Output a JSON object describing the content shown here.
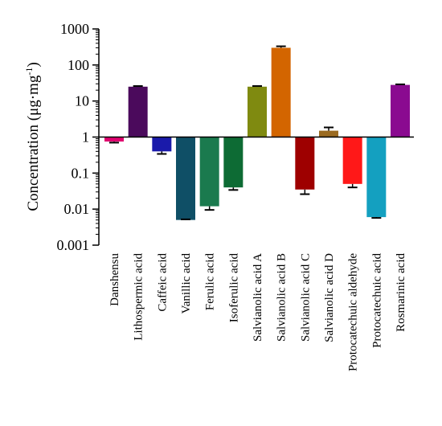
{
  "chart_data": {
    "type": "bar",
    "y_scale": "log",
    "baseline": 1,
    "ylim": [
      0.001,
      1000
    ],
    "y_ticks": [
      "0.001",
      "0.01",
      "0.1",
      "1",
      "10",
      "100",
      "1000"
    ],
    "ylabel": "Concentration (μg·mg",
    "ylabel_sup": "-1",
    "ylabel_close": ")",
    "xlabel": "",
    "title": "",
    "grid": false,
    "categories": [
      "Danshensu",
      "Lithospermic acid",
      "Caffeic acid",
      "Vanillic acid",
      "Ferulic acid",
      "Isoferulic acid",
      "Salvianolic acid A",
      "Salvianolic acid B",
      "Salvianolic acid C",
      "Salvianolic acid D",
      "Protocatechuic aldehyde",
      "Protocatechuic acid",
      "Rosmarinic acid"
    ],
    "values": [
      0.75,
      25,
      0.4,
      0.005,
      0.012,
      0.04,
      25,
      300,
      0.035,
      1.5,
      0.05,
      0.006,
      28
    ],
    "error_ends": [
      0.7,
      26,
      0.34,
      0.0052,
      0.0095,
      0.034,
      26,
      330,
      0.026,
      1.85,
      0.04,
      0.0057,
      29
    ],
    "colors": [
      "#e0006f",
      "#4b0a5c",
      "#1a1aaa",
      "#0f4f66",
      "#1a7a4e",
      "#0d6b34",
      "#7f8a10",
      "#d36500",
      "#9e0000",
      "#9a6a20",
      "#ff1818",
      "#14a0c0",
      "#8a0a90"
    ]
  }
}
